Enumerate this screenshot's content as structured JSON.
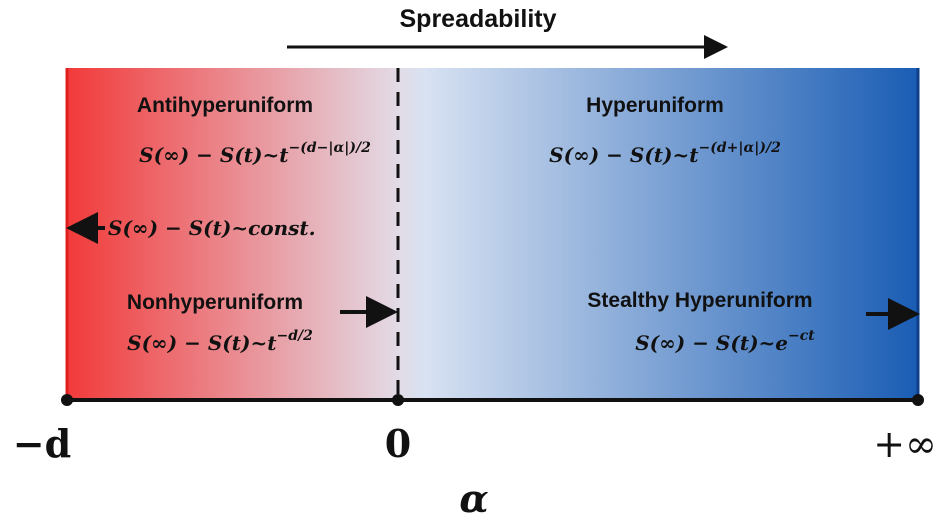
{
  "title": "Spreadability",
  "regions": [
    {
      "label": "Antihyperuniform",
      "formula": {
        "base": "S(∞) − S(t)~t",
        "exponent": "−(d−|α|)/2"
      }
    },
    {
      "label": "Nonhyperuniform",
      "formula": {
        "base": "S(∞) − S(t)~t",
        "exponent": "−d/2"
      }
    },
    {
      "label": "Hyperuniform",
      "formula": {
        "base": "S(∞) − S(t)~t",
        "exponent": "−(d+|α|)/2"
      }
    },
    {
      "label": "Stealthy Hyperuniform",
      "formula": {
        "base": "S(∞) − S(t)~e",
        "exponent": "−ct"
      }
    }
  ],
  "limit_note": "S(∞) − S(t)~const.",
  "axis": {
    "labels": [
      "−d",
      "0",
      "+∞"
    ],
    "variable": "α"
  }
}
